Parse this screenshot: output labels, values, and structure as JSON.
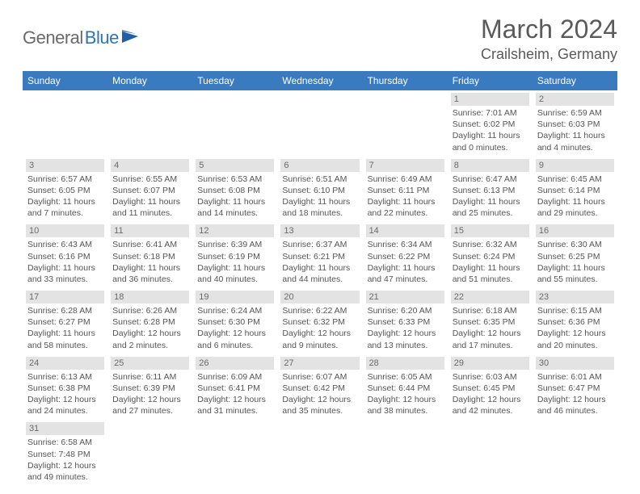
{
  "brand": {
    "part1": "General",
    "part2": "Blue"
  },
  "title": "March 2024",
  "location": "Crailsheim, Germany",
  "colors": {
    "header_bg": "#3a7bbf",
    "header_text": "#ffffff",
    "daynum_bg": "#e3e3e3",
    "text": "#555555",
    "rule": "#3a7bbf",
    "brand_gray": "#6a6a6a",
    "brand_blue": "#2e75b6"
  },
  "weekdays": [
    "Sunday",
    "Monday",
    "Tuesday",
    "Wednesday",
    "Thursday",
    "Friday",
    "Saturday"
  ],
  "weeks": [
    [
      null,
      null,
      null,
      null,
      null,
      {
        "d": "1",
        "sr": "Sunrise: 7:01 AM",
        "ss": "Sunset: 6:02 PM",
        "dl1": "Daylight: 11 hours",
        "dl2": "and 0 minutes."
      },
      {
        "d": "2",
        "sr": "Sunrise: 6:59 AM",
        "ss": "Sunset: 6:03 PM",
        "dl1": "Daylight: 11 hours",
        "dl2": "and 4 minutes."
      }
    ],
    [
      {
        "d": "3",
        "sr": "Sunrise: 6:57 AM",
        "ss": "Sunset: 6:05 PM",
        "dl1": "Daylight: 11 hours",
        "dl2": "and 7 minutes."
      },
      {
        "d": "4",
        "sr": "Sunrise: 6:55 AM",
        "ss": "Sunset: 6:07 PM",
        "dl1": "Daylight: 11 hours",
        "dl2": "and 11 minutes."
      },
      {
        "d": "5",
        "sr": "Sunrise: 6:53 AM",
        "ss": "Sunset: 6:08 PM",
        "dl1": "Daylight: 11 hours",
        "dl2": "and 14 minutes."
      },
      {
        "d": "6",
        "sr": "Sunrise: 6:51 AM",
        "ss": "Sunset: 6:10 PM",
        "dl1": "Daylight: 11 hours",
        "dl2": "and 18 minutes."
      },
      {
        "d": "7",
        "sr": "Sunrise: 6:49 AM",
        "ss": "Sunset: 6:11 PM",
        "dl1": "Daylight: 11 hours",
        "dl2": "and 22 minutes."
      },
      {
        "d": "8",
        "sr": "Sunrise: 6:47 AM",
        "ss": "Sunset: 6:13 PM",
        "dl1": "Daylight: 11 hours",
        "dl2": "and 25 minutes."
      },
      {
        "d": "9",
        "sr": "Sunrise: 6:45 AM",
        "ss": "Sunset: 6:14 PM",
        "dl1": "Daylight: 11 hours",
        "dl2": "and 29 minutes."
      }
    ],
    [
      {
        "d": "10",
        "sr": "Sunrise: 6:43 AM",
        "ss": "Sunset: 6:16 PM",
        "dl1": "Daylight: 11 hours",
        "dl2": "and 33 minutes."
      },
      {
        "d": "11",
        "sr": "Sunrise: 6:41 AM",
        "ss": "Sunset: 6:18 PM",
        "dl1": "Daylight: 11 hours",
        "dl2": "and 36 minutes."
      },
      {
        "d": "12",
        "sr": "Sunrise: 6:39 AM",
        "ss": "Sunset: 6:19 PM",
        "dl1": "Daylight: 11 hours",
        "dl2": "and 40 minutes."
      },
      {
        "d": "13",
        "sr": "Sunrise: 6:37 AM",
        "ss": "Sunset: 6:21 PM",
        "dl1": "Daylight: 11 hours",
        "dl2": "and 44 minutes."
      },
      {
        "d": "14",
        "sr": "Sunrise: 6:34 AM",
        "ss": "Sunset: 6:22 PM",
        "dl1": "Daylight: 11 hours",
        "dl2": "and 47 minutes."
      },
      {
        "d": "15",
        "sr": "Sunrise: 6:32 AM",
        "ss": "Sunset: 6:24 PM",
        "dl1": "Daylight: 11 hours",
        "dl2": "and 51 minutes."
      },
      {
        "d": "16",
        "sr": "Sunrise: 6:30 AM",
        "ss": "Sunset: 6:25 PM",
        "dl1": "Daylight: 11 hours",
        "dl2": "and 55 minutes."
      }
    ],
    [
      {
        "d": "17",
        "sr": "Sunrise: 6:28 AM",
        "ss": "Sunset: 6:27 PM",
        "dl1": "Daylight: 11 hours",
        "dl2": "and 58 minutes."
      },
      {
        "d": "18",
        "sr": "Sunrise: 6:26 AM",
        "ss": "Sunset: 6:28 PM",
        "dl1": "Daylight: 12 hours",
        "dl2": "and 2 minutes."
      },
      {
        "d": "19",
        "sr": "Sunrise: 6:24 AM",
        "ss": "Sunset: 6:30 PM",
        "dl1": "Daylight: 12 hours",
        "dl2": "and 6 minutes."
      },
      {
        "d": "20",
        "sr": "Sunrise: 6:22 AM",
        "ss": "Sunset: 6:32 PM",
        "dl1": "Daylight: 12 hours",
        "dl2": "and 9 minutes."
      },
      {
        "d": "21",
        "sr": "Sunrise: 6:20 AM",
        "ss": "Sunset: 6:33 PM",
        "dl1": "Daylight: 12 hours",
        "dl2": "and 13 minutes."
      },
      {
        "d": "22",
        "sr": "Sunrise: 6:18 AM",
        "ss": "Sunset: 6:35 PM",
        "dl1": "Daylight: 12 hours",
        "dl2": "and 17 minutes."
      },
      {
        "d": "23",
        "sr": "Sunrise: 6:15 AM",
        "ss": "Sunset: 6:36 PM",
        "dl1": "Daylight: 12 hours",
        "dl2": "and 20 minutes."
      }
    ],
    [
      {
        "d": "24",
        "sr": "Sunrise: 6:13 AM",
        "ss": "Sunset: 6:38 PM",
        "dl1": "Daylight: 12 hours",
        "dl2": "and 24 minutes."
      },
      {
        "d": "25",
        "sr": "Sunrise: 6:11 AM",
        "ss": "Sunset: 6:39 PM",
        "dl1": "Daylight: 12 hours",
        "dl2": "and 27 minutes."
      },
      {
        "d": "26",
        "sr": "Sunrise: 6:09 AM",
        "ss": "Sunset: 6:41 PM",
        "dl1": "Daylight: 12 hours",
        "dl2": "and 31 minutes."
      },
      {
        "d": "27",
        "sr": "Sunrise: 6:07 AM",
        "ss": "Sunset: 6:42 PM",
        "dl1": "Daylight: 12 hours",
        "dl2": "and 35 minutes."
      },
      {
        "d": "28",
        "sr": "Sunrise: 6:05 AM",
        "ss": "Sunset: 6:44 PM",
        "dl1": "Daylight: 12 hours",
        "dl2": "and 38 minutes."
      },
      {
        "d": "29",
        "sr": "Sunrise: 6:03 AM",
        "ss": "Sunset: 6:45 PM",
        "dl1": "Daylight: 12 hours",
        "dl2": "and 42 minutes."
      },
      {
        "d": "30",
        "sr": "Sunrise: 6:01 AM",
        "ss": "Sunset: 6:47 PM",
        "dl1": "Daylight: 12 hours",
        "dl2": "and 46 minutes."
      }
    ],
    [
      {
        "d": "31",
        "sr": "Sunrise: 6:58 AM",
        "ss": "Sunset: 7:48 PM",
        "dl1": "Daylight: 12 hours",
        "dl2": "and 49 minutes."
      },
      null,
      null,
      null,
      null,
      null,
      null
    ]
  ]
}
